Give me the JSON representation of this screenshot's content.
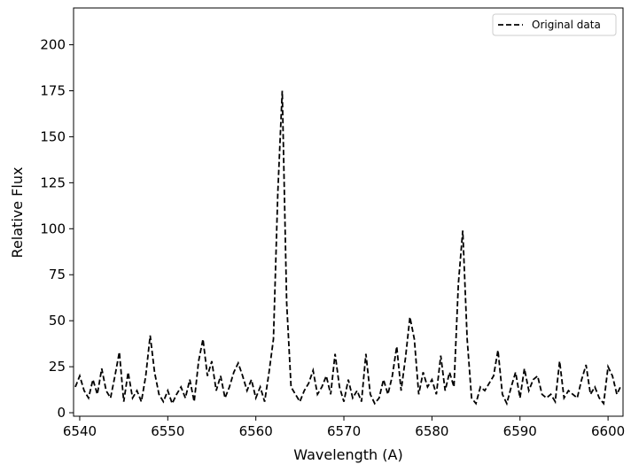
{
  "chart_data": {
    "type": "line",
    "xlabel": "Wavelength (A)",
    "ylabel": "Relative Flux",
    "xlim": [
      6539.3,
      6601.7
    ],
    "ylim": [
      -1.9,
      220
    ],
    "xticks": [
      6540,
      6550,
      6560,
      6570,
      6580,
      6590,
      6600
    ],
    "yticks": [
      0,
      25,
      50,
      75,
      100,
      125,
      150,
      175,
      200
    ],
    "legend": "upper right",
    "grid": false,
    "x": [
      6539.5,
      6540,
      6540.5,
      6541,
      6541.5,
      6542,
      6542.5,
      6543,
      6543.5,
      6544,
      6544.5,
      6545,
      6545.5,
      6546,
      6546.5,
      6547,
      6547.5,
      6548,
      6548.5,
      6549,
      6549.5,
      6550,
      6550.5,
      6551,
      6551.5,
      6552,
      6552.5,
      6553,
      6553.5,
      6554,
      6554.5,
      6555,
      6555.5,
      6556,
      6556.5,
      6557,
      6557.5,
      6558,
      6558.5,
      6559,
      6559.5,
      6560,
      6560.5,
      6561,
      6561.5,
      6562,
      6562.5,
      6563,
      6563.5,
      6564,
      6564.5,
      6565,
      6565.5,
      6566,
      6566.5,
      6567,
      6567.5,
      6568,
      6568.5,
      6569,
      6569.5,
      6570,
      6570.5,
      6571,
      6571.5,
      6572,
      6572.5,
      6573,
      6573.5,
      6574,
      6574.5,
      6575,
      6575.5,
      6576,
      6576.5,
      6577,
      6577.5,
      6578,
      6578.5,
      6579,
      6579.5,
      6580,
      6580.5,
      6581,
      6581.5,
      6582,
      6582.5,
      6583,
      6583.5,
      6584,
      6584.5,
      6585,
      6585.5,
      6586,
      6586.5,
      6587,
      6587.5,
      6588,
      6588.5,
      6589,
      6589.5,
      6590,
      6590.5,
      6591,
      6591.5,
      6592,
      6592.5,
      6593,
      6593.5,
      6594,
      6594.5,
      6595,
      6595.5,
      6596,
      6596.5,
      6597,
      6597.5,
      6598,
      6598.5,
      6599,
      6599.5,
      6600,
      6600.5,
      6601,
      6601.5
    ],
    "series": [
      {
        "name": "Original data",
        "color": "#000000",
        "dash": "dashed",
        "values": [
          14,
          20,
          12,
          8,
          18,
          10,
          24,
          12,
          8,
          20,
          33,
          6,
          22,
          8,
          12,
          6,
          20,
          42,
          22,
          10,
          6,
          12,
          5,
          10,
          14,
          8,
          18,
          6,
          28,
          40,
          20,
          28,
          12,
          20,
          8,
          14,
          22,
          27,
          20,
          12,
          18,
          8,
          14,
          6,
          22,
          40,
          120,
          175,
          60,
          14,
          10,
          6,
          12,
          16,
          23,
          10,
          14,
          20,
          10,
          32,
          14,
          6,
          18,
          8,
          12,
          6,
          32,
          10,
          5,
          8,
          18,
          10,
          20,
          36,
          12,
          30,
          52,
          40,
          10,
          22,
          14,
          18,
          10,
          31,
          12,
          22,
          14,
          70,
          99,
          40,
          8,
          5,
          14,
          12,
          16,
          20,
          34,
          10,
          5,
          14,
          22,
          8,
          24,
          12,
          18,
          20,
          10,
          8,
          10,
          6,
          28,
          8,
          12,
          10,
          8,
          18,
          26,
          10,
          14,
          8,
          5,
          25,
          20,
          10,
          15
        ]
      }
    ]
  }
}
